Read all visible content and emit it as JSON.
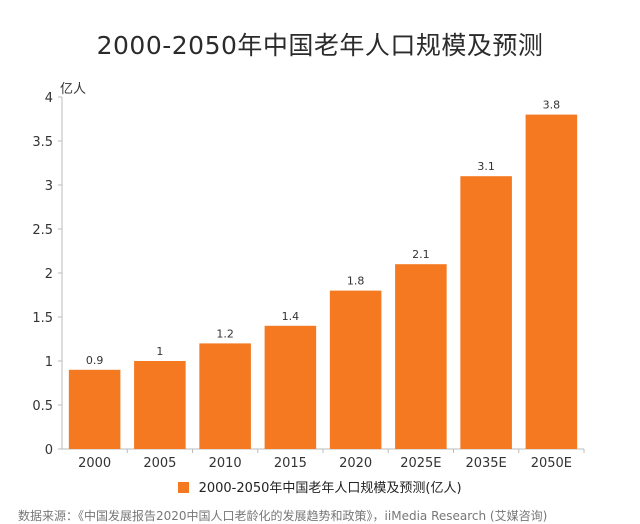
{
  "chart_data": {
    "type": "bar",
    "title": "2000-2050年中国老年人口规模及预测",
    "unit_label": "亿人",
    "categories": [
      "2000",
      "2005",
      "2010",
      "2015",
      "2020",
      "2025E",
      "2035E",
      "2050E"
    ],
    "series": [
      {
        "name": "2000-2050年中国老年人口规模及预测(亿人)",
        "values": [
          0.9,
          1,
          1.2,
          1.4,
          1.8,
          2.1,
          3.1,
          3.8
        ],
        "data_labels": [
          "0.9",
          "1",
          "1.2",
          "1.4",
          "1.8",
          "2.1",
          "3.1",
          "3.8"
        ],
        "color": "#f47920"
      }
    ],
    "ylim": [
      0,
      4
    ],
    "yticks": [
      0,
      0.5,
      1,
      1.5,
      2,
      2.5,
      3,
      3.5,
      4
    ],
    "ytick_labels": [
      "0",
      "0.5",
      "1",
      "1.5",
      "2",
      "2.5",
      "3",
      "3.5",
      "4"
    ],
    "grid": false,
    "legend_position": "bottom-center"
  },
  "source_text": "数据来源：《中国发展报告2020中国人口老龄化的发展趋势和政策》，iiMedia Research (艾媒咨询)"
}
